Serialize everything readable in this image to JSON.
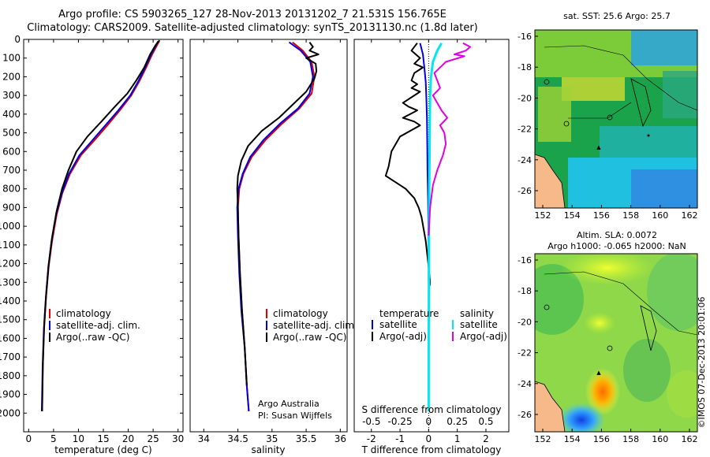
{
  "header": {
    "title_line1": "Argo profile: CS 5903265_127 28-Nov-2013 20131202_7 21.531S 156.765E",
    "title_line2": "Climatology: CARS2009. Satellite-adjusted climatology: synTS_20131130.nc (1.8d later)"
  },
  "colors": {
    "climatology": "#e00000",
    "satellite": "#0000e0",
    "argo": "#000000",
    "salinity_sat": "#00e8f0",
    "salinity_argo": "#e000e0",
    "land": "#f5b98a"
  },
  "chart_data": [
    {
      "type": "line",
      "id": "temperature",
      "xlabel": "temperature (deg C)",
      "ylabel": "",
      "xlim": [
        -1,
        31
      ],
      "ylim": [
        0,
        2100
      ],
      "xticks": [
        0,
        5,
        10,
        15,
        20,
        25,
        30
      ],
      "yticks": [
        0,
        100,
        200,
        300,
        400,
        500,
        600,
        700,
        800,
        900,
        1000,
        1100,
        1200,
        1300,
        1400,
        1500,
        1600,
        1700,
        1800,
        1900,
        2000
      ],
      "legend": [
        "climatology",
        "satellite-adj. clim.",
        "Argo(..raw -QC)"
      ],
      "series": [
        {
          "name": "climatology",
          "color": "#e00000",
          "points": [
            [
              26.2,
              10
            ],
            [
              25.8,
              30
            ],
            [
              24.8,
              80
            ],
            [
              23.6,
              150
            ],
            [
              22.3,
              220
            ],
            [
              20.6,
              300
            ],
            [
              18.3,
              380
            ],
            [
              15.8,
              460
            ],
            [
              13.2,
              540
            ],
            [
              10.5,
              620
            ],
            [
              8.3,
              720
            ],
            [
              6.8,
              820
            ],
            [
              5.6,
              940
            ],
            [
              4.7,
              1080
            ],
            [
              4.0,
              1220
            ],
            [
              3.5,
              1380
            ],
            [
              3.1,
              1550
            ],
            [
              2.85,
              1750
            ],
            [
              2.7,
              1990
            ]
          ]
        },
        {
          "name": "satellite-adj. clim.",
          "color": "#0000e0",
          "points": [
            [
              26.0,
              10
            ],
            [
              25.6,
              30
            ],
            [
              24.6,
              80
            ],
            [
              23.4,
              150
            ],
            [
              22.1,
              220
            ],
            [
              20.4,
              300
            ],
            [
              18.0,
              380
            ],
            [
              15.4,
              460
            ],
            [
              12.8,
              540
            ],
            [
              10.2,
              620
            ],
            [
              8.1,
              720
            ],
            [
              6.7,
              820
            ],
            [
              5.5,
              940
            ],
            [
              4.6,
              1080
            ],
            [
              3.95,
              1220
            ],
            [
              3.45,
              1380
            ],
            [
              3.05,
              1550
            ],
            [
              2.8,
              1750
            ],
            [
              2.65,
              1990
            ]
          ]
        },
        {
          "name": "Argo(..raw -QC)",
          "color": "#000000",
          "points": [
            [
              26.3,
              5
            ],
            [
              25.5,
              30
            ],
            [
              24.4,
              80
            ],
            [
              23.2,
              150
            ],
            [
              21.6,
              220
            ],
            [
              19.8,
              290
            ],
            [
              17.3,
              360
            ],
            [
              14.6,
              440
            ],
            [
              11.8,
              520
            ],
            [
              9.6,
              600
            ],
            [
              8.0,
              700
            ],
            [
              6.7,
              800
            ],
            [
              5.6,
              920
            ],
            [
              4.7,
              1060
            ],
            [
              4.0,
              1210
            ],
            [
              3.5,
              1370
            ],
            [
              3.1,
              1540
            ],
            [
              2.85,
              1750
            ],
            [
              2.7,
              1990
            ]
          ]
        }
      ]
    },
    {
      "type": "line",
      "id": "salinity",
      "xlabel": "salinity",
      "xlim": [
        33.8,
        36.1
      ],
      "ylim": [
        0,
        2100
      ],
      "xticks": [
        34,
        34.5,
        35,
        35.5,
        36
      ],
      "legend": [
        "climatology",
        "satellite-adj. clim.",
        "Argo(..raw -QC)"
      ],
      "annotation_line1": "Argo Australia",
      "annotation_line2": "PI: Susan Wijffels",
      "series": [
        {
          "name": "climatology",
          "color": "#e00000",
          "points": [
            [
              35.3,
              15
            ],
            [
              35.45,
              60
            ],
            [
              35.58,
              120
            ],
            [
              35.62,
              200
            ],
            [
              35.58,
              290
            ],
            [
              35.4,
              370
            ],
            [
              35.15,
              450
            ],
            [
              34.9,
              540
            ],
            [
              34.7,
              630
            ],
            [
              34.58,
              720
            ],
            [
              34.52,
              800
            ],
            [
              34.5,
              900
            ],
            [
              34.51,
              1050
            ],
            [
              34.53,
              1250
            ],
            [
              34.56,
              1450
            ],
            [
              34.6,
              1650
            ],
            [
              34.63,
              1850
            ],
            [
              34.66,
              1990
            ]
          ]
        },
        {
          "name": "satellite-adj. clim.",
          "color": "#0000e0",
          "points": [
            [
              35.25,
              15
            ],
            [
              35.42,
              60
            ],
            [
              35.56,
              120
            ],
            [
              35.6,
              200
            ],
            [
              35.55,
              290
            ],
            [
              35.38,
              370
            ],
            [
              35.12,
              450
            ],
            [
              34.87,
              540
            ],
            [
              34.68,
              630
            ],
            [
              34.57,
              720
            ],
            [
              34.51,
              800
            ],
            [
              34.49,
              900
            ],
            [
              34.5,
              1050
            ],
            [
              34.52,
              1250
            ],
            [
              34.55,
              1450
            ],
            [
              34.6,
              1650
            ],
            [
              34.63,
              1850
            ],
            [
              34.66,
              1990
            ]
          ]
        },
        {
          "name": "Argo(..raw -QC)",
          "color": "#000000",
          "points": [
            [
              35.55,
              15
            ],
            [
              35.6,
              40
            ],
            [
              35.55,
              60
            ],
            [
              35.68,
              80
            ],
            [
              35.5,
              100
            ],
            [
              35.64,
              130
            ],
            [
              35.65,
              170
            ],
            [
              35.62,
              210
            ],
            [
              35.5,
              280
            ],
            [
              35.3,
              350
            ],
            [
              35.1,
              420
            ],
            [
              34.85,
              490
            ],
            [
              34.65,
              570
            ],
            [
              34.55,
              650
            ],
            [
              34.5,
              730
            ],
            [
              34.49,
              800
            ],
            [
              34.5,
              900
            ],
            [
              34.51,
              1050
            ],
            [
              34.53,
              1250
            ],
            [
              34.56,
              1450
            ],
            [
              34.6,
              1650
            ],
            [
              34.63,
              1850
            ]
          ]
        }
      ]
    },
    {
      "type": "line",
      "id": "difference",
      "xlabel": "T difference from climatology",
      "xlabel_top": "S difference from climatology",
      "xlim": [
        -2.6,
        2.8
      ],
      "ylim": [
        0,
        2100
      ],
      "xticks": [
        -2,
        -1,
        0,
        1,
        2
      ],
      "xtick_labels": [
        "-2",
        "-1",
        "0",
        "1",
        "2"
      ],
      "s_ticks": [
        -0.5,
        -0.25,
        0,
        0.25,
        0.5
      ],
      "s_tick_labels": [
        "-0.5",
        "-0.25",
        "0",
        "0.25",
        "0.5"
      ],
      "legend_left_title": "temperature",
      "legend_right_title": "salinity",
      "legend_left": [
        "satellite",
        "Argo(-adj)"
      ],
      "legend_right": [
        "satellite",
        "Argo(-adj)"
      ],
      "series": [
        {
          "name": "T satellite",
          "color": "#0000e0",
          "points": [
            [
              -0.3,
              20
            ],
            [
              -0.2,
              80
            ],
            [
              -0.15,
              150
            ],
            [
              -0.1,
              230
            ],
            [
              -0.08,
              320
            ],
            [
              -0.06,
              420
            ],
            [
              -0.05,
              560
            ],
            [
              -0.04,
              700
            ],
            [
              -0.02,
              850
            ],
            [
              -0.01,
              1000
            ],
            [
              0,
              1200
            ],
            [
              0,
              1300
            ]
          ]
        },
        {
          "name": "T Argo(-adj)",
          "color": "#000000",
          "points": [
            [
              -0.4,
              20
            ],
            [
              -0.6,
              60
            ],
            [
              -0.3,
              100
            ],
            [
              -0.5,
              130
            ],
            [
              -0.2,
              150
            ],
            [
              -0.5,
              180
            ],
            [
              -0.6,
              220
            ],
            [
              -0.4,
              240
            ],
            [
              -0.6,
              260
            ],
            [
              -0.3,
              280
            ],
            [
              -0.9,
              340
            ],
            [
              -0.7,
              360
            ],
            [
              -0.4,
              380
            ],
            [
              -0.9,
              420
            ],
            [
              -0.5,
              440
            ],
            [
              -0.3,
              460
            ],
            [
              -1.0,
              520
            ],
            [
              -1.3,
              600
            ],
            [
              -1.4,
              680
            ],
            [
              -1.5,
              730
            ],
            [
              -1.2,
              760
            ],
            [
              -0.8,
              800
            ],
            [
              -0.5,
              850
            ],
            [
              -0.35,
              900
            ],
            [
              -0.25,
              950
            ],
            [
              -0.1,
              1080
            ],
            [
              0,
              1220
            ],
            [
              0.05,
              1300
            ],
            [
              0.03,
              1320
            ]
          ]
        },
        {
          "name": "S satellite",
          "color": "#00e8f0",
          "points": [
            [
              0.45,
              20
            ],
            [
              0.3,
              60
            ],
            [
              0.15,
              120
            ],
            [
              0.08,
              200
            ],
            [
              0.05,
              300
            ],
            [
              0.04,
              450
            ],
            [
              0.03,
              600
            ],
            [
              0.02,
              800
            ],
            [
              0.01,
              1000
            ],
            [
              0.01,
              1300
            ],
            [
              0,
              1600
            ],
            [
              0,
              1990
            ]
          ]
        },
        {
          "name": "S Argo(-adj)",
          "color": "#e000e0",
          "points": [
            [
              1.2,
              20
            ],
            [
              1.45,
              40
            ],
            [
              1.3,
              60
            ],
            [
              0.9,
              80
            ],
            [
              1.25,
              90
            ],
            [
              0.6,
              120
            ],
            [
              0.4,
              150
            ],
            [
              0.2,
              180
            ],
            [
              0.3,
              220
            ],
            [
              0.4,
              260
            ],
            [
              0.15,
              300
            ],
            [
              0.3,
              340
            ],
            [
              0.45,
              380
            ],
            [
              0.65,
              420
            ],
            [
              0.4,
              460
            ],
            [
              0.55,
              500
            ],
            [
              0.6,
              560
            ],
            [
              0.5,
              620
            ],
            [
              0.3,
              700
            ],
            [
              0.15,
              780
            ],
            [
              0.05,
              900
            ],
            [
              0,
              1050
            ]
          ]
        }
      ]
    }
  ],
  "maps": [
    {
      "id": "sst_map",
      "title": "sat. SST: 25.6 Argo: 25.7",
      "xticks": [
        "152",
        "154",
        "156",
        "158",
        "160",
        "162"
      ],
      "yticks": [
        "-16",
        "-18",
        "-20",
        "-22",
        "-24",
        "-26"
      ],
      "argo_marker": "▲"
    },
    {
      "id": "sla_map",
      "title_line1": "Altim. SLA: 0.0072",
      "title_line2": "Argo h1000: -0.065 h2000: NaN",
      "xticks": [
        "152",
        "154",
        "156",
        "158",
        "160",
        "162"
      ],
      "yticks": [
        "-16",
        "-18",
        "-20",
        "-22",
        "-24",
        "-26"
      ],
      "argo_marker": "▲"
    }
  ],
  "footer": {
    "watermark": "©IMOS 07-Dec-2013 20:01:06"
  }
}
